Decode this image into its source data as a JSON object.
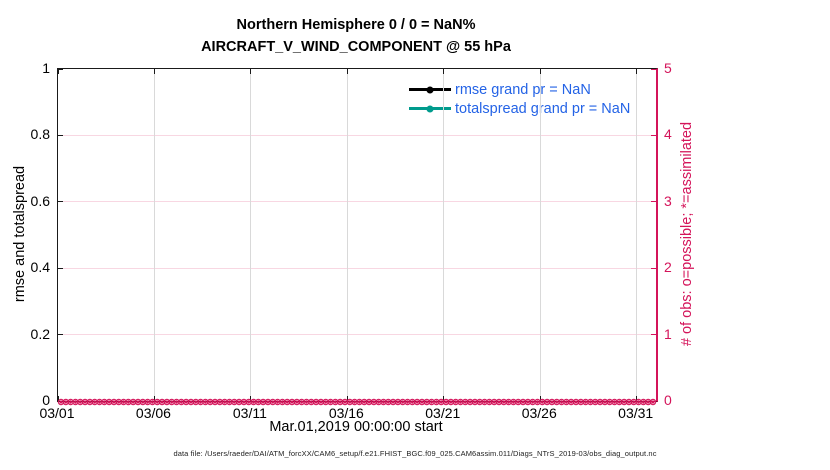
{
  "title": {
    "line1": "Northern Hemisphere 0 / 0 = NaN%",
    "line2": "AIRCRAFT_V_WIND_COMPONENT @ 55 hPa"
  },
  "legend": {
    "text_color": "#2463e6",
    "items": [
      {
        "label": "rmse grand pr = NaN",
        "line_color": "#000000",
        "marker": "filled-circle"
      },
      {
        "label": "totalspread grand pr = NaN",
        "line_color": "#009b8d",
        "marker": "filled-circle"
      }
    ]
  },
  "axes": {
    "x": {
      "label": "Mar.01,2019 00:00:00 start",
      "tick_labels": [
        "03/01",
        "03/06",
        "03/11",
        "03/16",
        "03/21",
        "03/26",
        "03/31"
      ],
      "tick_days": [
        1,
        6,
        11,
        16,
        21,
        26,
        31
      ],
      "domain_days": 31
    },
    "y_left": {
      "label": "rmse and totalspread",
      "tick_labels": [
        "0",
        "0.2",
        "0.4",
        "0.6",
        "0.8",
        "1"
      ],
      "tick_values": [
        0,
        0.2,
        0.4,
        0.6,
        0.8,
        1
      ],
      "range": [
        0,
        1
      ],
      "color": "#000000"
    },
    "y_right": {
      "label": "# of obs: o=possible; *=assimilated",
      "tick_labels": [
        "0",
        "1",
        "2",
        "3",
        "4",
        "5"
      ],
      "tick_values": [
        0,
        1,
        2,
        3,
        4,
        5
      ],
      "range": [
        0,
        5
      ],
      "color": "#d4145a"
    }
  },
  "obs_markers": {
    "glyph": "circle-with-asterisk",
    "count": 124,
    "value": 0,
    "color": "#d4145a"
  },
  "caption": {
    "text": "data file: /Users/raeder/DAI/ATM_forcXX/CAM6_setup/f.e21.FHIST_BGC.f09_025.CAM6assim.011/Diags_NTrS_2019-03/obs_diag_output.nc"
  },
  "colors": {
    "accent_pink": "#d4145a",
    "teal": "#009b8d",
    "legend_blue": "#2463e6",
    "grid_horizontal": "#f8d7e2",
    "grid_vertical": "#d9d9d9",
    "axis_black": "#1a1a1a"
  },
  "chart_data": {
    "type": "line",
    "title": "Northern Hemisphere 0 / 0 = NaN%",
    "subtitle": "AIRCRAFT_V_WIND_COMPONENT @ 55 hPa",
    "xlabel": "Mar.01,2019 00:00:00 start",
    "ylabel_left": "rmse and totalspread",
    "ylabel_right": "# of obs: o=possible; *=assimilated",
    "x_ticks": [
      "03/01",
      "03/06",
      "03/11",
      "03/16",
      "03/21",
      "03/26",
      "03/31"
    ],
    "x_range": "Mar 1 2019 through Apr 1 2019",
    "ylim_left": [
      0,
      1
    ],
    "yticks_left": [
      0,
      0.2,
      0.4,
      0.6,
      0.8,
      1
    ],
    "ylim_right": [
      0,
      5
    ],
    "yticks_right": [
      0,
      1,
      2,
      3,
      4,
      5
    ],
    "grid": true,
    "legend_position": "upper-right-inside, no box",
    "series": [
      {
        "name": "rmse grand pr = NaN",
        "axis": "left",
        "color": "#000000",
        "values": "NaN - no curve plotted"
      },
      {
        "name": "totalspread grand pr = NaN",
        "axis": "left",
        "color": "#009b8d",
        "values": "NaN - no curve plotted"
      },
      {
        "name": "# of obs possible (o)",
        "axis": "right",
        "color": "#d4145a",
        "values": "0 at every assimilation time from 03/01 to 04/01 (dense row of markers along y=0)"
      },
      {
        "name": "# of obs assimilated (*)",
        "axis": "right",
        "color": "#d4145a",
        "values": "0 at every assimilation time from 03/01 to 04/01 (dense row of markers along y=0)"
      }
    ]
  }
}
